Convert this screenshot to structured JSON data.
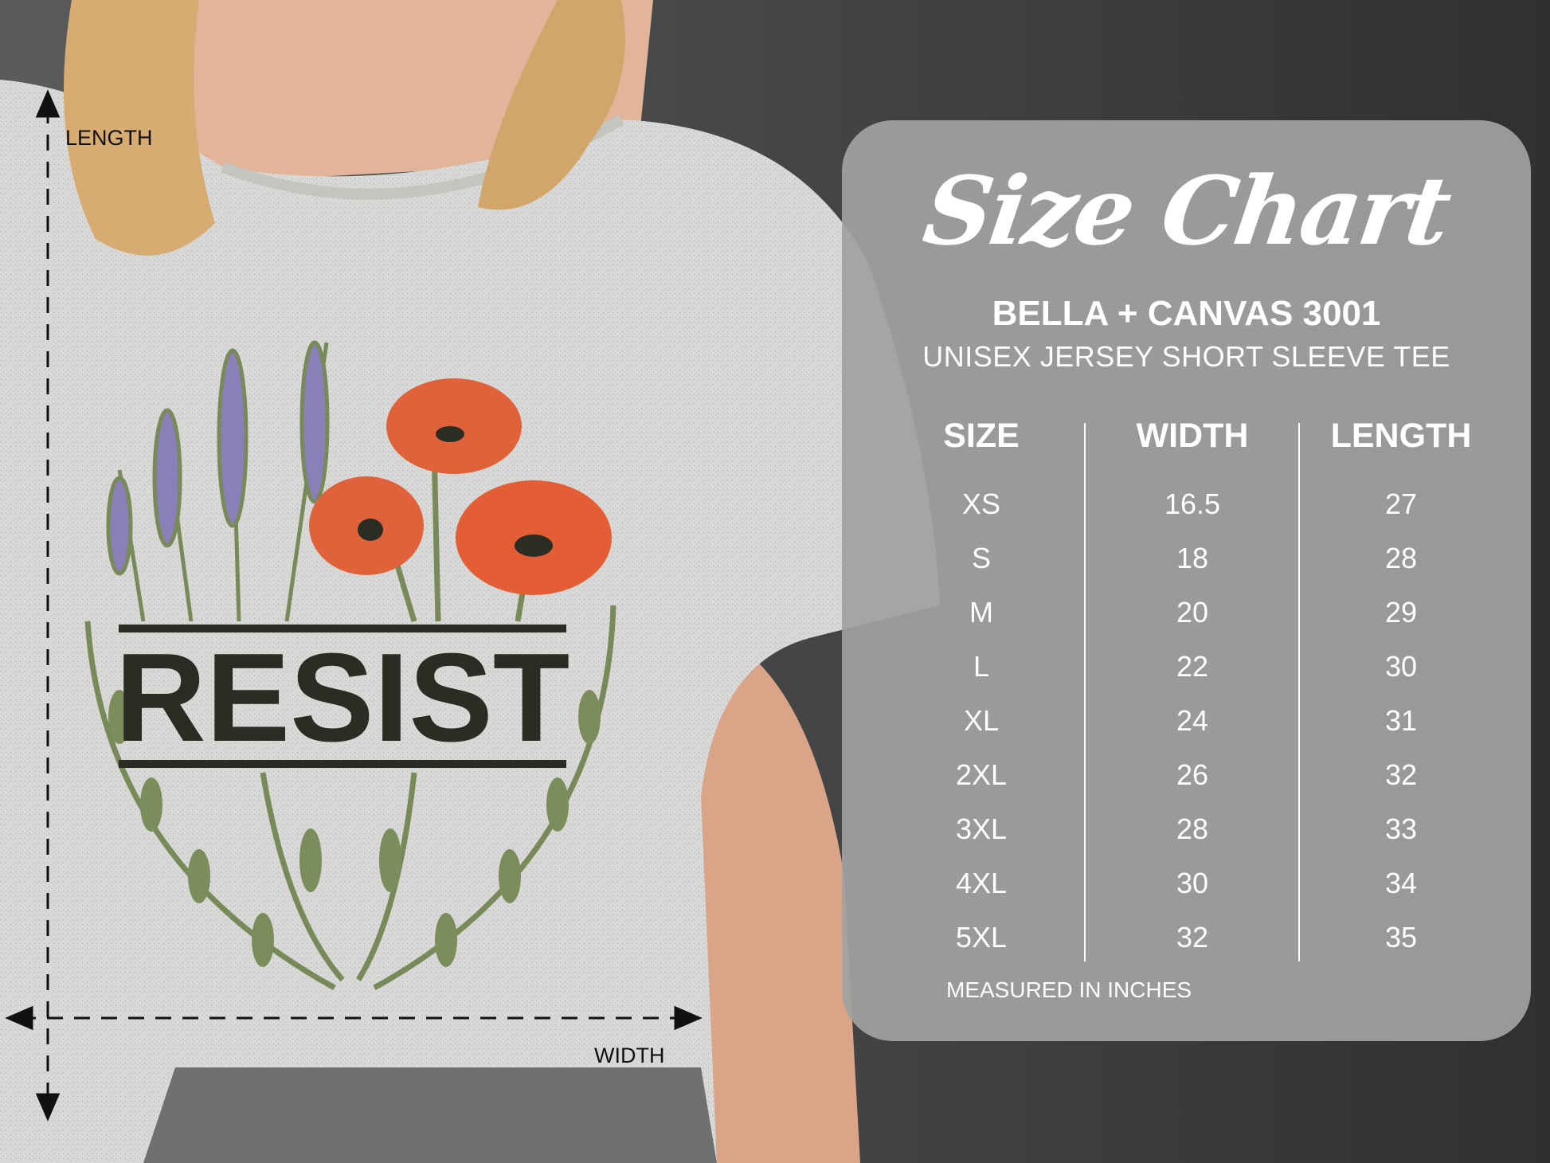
{
  "product_image": {
    "shirt_print_text": "RESIST",
    "annotations": {
      "length_label": "LENGTH",
      "width_label": "WIDTH"
    }
  },
  "size_chart": {
    "title": "Size Chart",
    "brand_model": "BELLA + CANVAS 3001",
    "product_name": "UNISEX JERSEY SHORT SLEEVE TEE",
    "columns": [
      "SIZE",
      "WIDTH",
      "LENGTH"
    ],
    "rows": [
      [
        "XS",
        "16.5",
        "27"
      ],
      [
        "S",
        "18",
        "28"
      ],
      [
        "M",
        "20",
        "29"
      ],
      [
        "L",
        "22",
        "30"
      ],
      [
        "XL",
        "24",
        "31"
      ],
      [
        "2XL",
        "26",
        "32"
      ],
      [
        "3XL",
        "28",
        "33"
      ],
      [
        "4XL",
        "30",
        "34"
      ],
      [
        "5XL",
        "32",
        "35"
      ]
    ],
    "footer": "MEASURED IN INCHES"
  },
  "colors": {
    "panel": "#a0a1a0",
    "shirt": "#d6d6d4",
    "print_text": "#2b2d25",
    "poppy": "#e0623a",
    "lavender": "#8a80b8",
    "leaf": "#78895a"
  }
}
